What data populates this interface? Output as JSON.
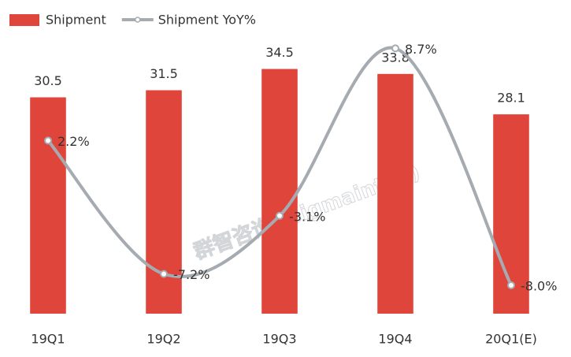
{
  "chart_data": {
    "type": "combo",
    "categories": [
      "19Q1",
      "19Q2",
      "19Q3",
      "19Q4",
      "20Q1(E)"
    ],
    "series": [
      {
        "name": "Shipment",
        "type": "bar",
        "color": "#e0453b",
        "values": [
          30.5,
          31.5,
          34.5,
          33.8,
          28.1
        ]
      },
      {
        "name": "Shipment YoY%",
        "type": "line",
        "axis": "y2",
        "color": "#a5abb0",
        "values": [
          2.2,
          -7.2,
          -3.1,
          8.7,
          -8.0
        ],
        "value_labels": [
          "2.2%",
          "-7.2%",
          "-3.1%",
          "8.7%",
          "-8.0%"
        ]
      }
    ],
    "ylim": [
      0,
      40
    ],
    "y2lim": [
      -10,
      10
    ],
    "legend": "top-left",
    "watermark": "群智咨询 (Sigmaintell)"
  }
}
